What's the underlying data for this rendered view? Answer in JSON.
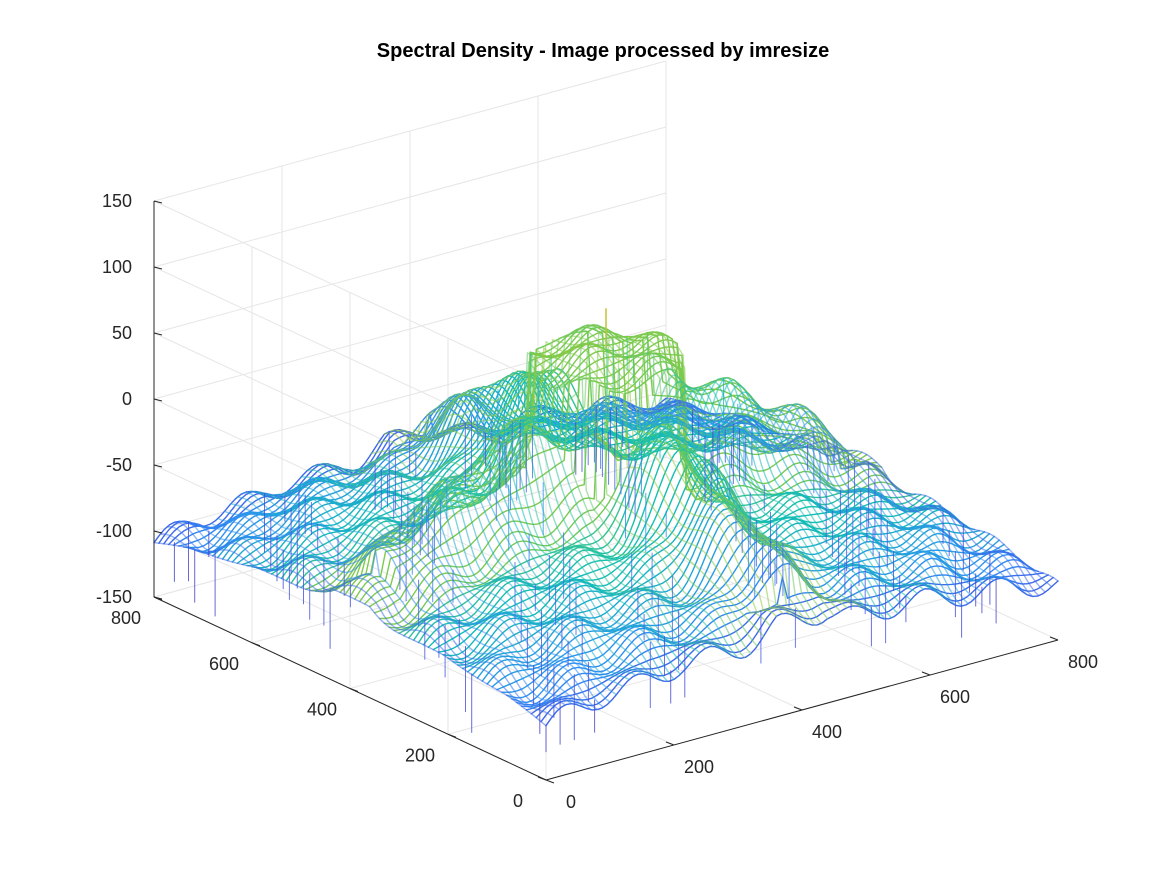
{
  "chart_data": {
    "type": "surface3d",
    "title": "Spectral Density - Image processed by imresize",
    "xlabel": "",
    "ylabel": "",
    "zlabel": "",
    "xlim": [
      0,
      800
    ],
    "ylim": [
      0,
      800
    ],
    "zlim": [
      -150,
      150
    ],
    "x_ticks": [
      0,
      200,
      400,
      600,
      800
    ],
    "y_ticks": [
      0,
      200,
      400,
      600,
      800
    ],
    "z_ticks": [
      -150,
      -100,
      -50,
      0,
      50,
      100,
      150
    ],
    "x_tick_labels": [
      "0",
      "200",
      "400",
      "600",
      "800"
    ],
    "y_tick_labels": [
      "0",
      "200",
      "400",
      "600",
      "800"
    ],
    "z_tick_labels": [
      "-150",
      "-100",
      "-50",
      "0",
      "50",
      "100",
      "150"
    ],
    "grid": true,
    "colormap": "parula",
    "colors": {
      "low": "#3e26a8",
      "mid_low": "#2f90f3",
      "mid": "#12bfb4",
      "mid_high": "#8bcc42",
      "high": "#f5bd27"
    },
    "center": {
      "x": 400,
      "y": 400
    },
    "peak_z": 85,
    "plateau_z": 55,
    "plateau_radius": 100,
    "arm_z": 45,
    "edge_z": -100,
    "min_z": -150
  }
}
